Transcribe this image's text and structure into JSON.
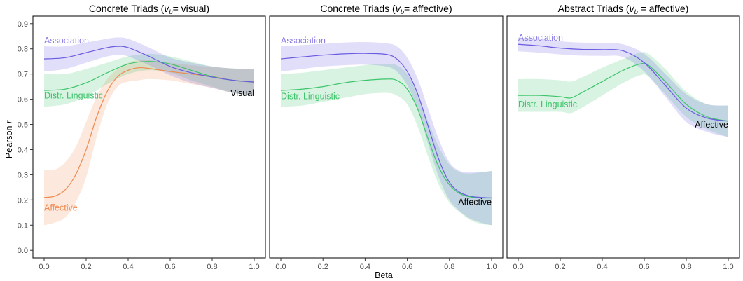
{
  "chart_data": [
    {
      "type": "line",
      "title_pre": "Concrete Triads (",
      "title_var": "v",
      "title_sub": "b",
      "title_post": "= visual)",
      "xlabel": "Beta",
      "ylabel_pre": "Pearson ",
      "ylabel_var": "r",
      "xlim": [
        0,
        1
      ],
      "ylim": [
        -0.03,
        0.93
      ],
      "xticks": [
        "0.0",
        "0.2",
        "0.4",
        "0.6",
        "0.8",
        "1.0"
      ],
      "yticks": [
        "0.0",
        "0.1",
        "0.2",
        "0.3",
        "0.4",
        "0.5",
        "0.6",
        "0.7",
        "0.8",
        "0.9"
      ],
      "series": [
        {
          "name": "Affective",
          "color": "#f08a50",
          "x": [
            0,
            0.05,
            0.1,
            0.15,
            0.2,
            0.25,
            0.3,
            0.35,
            0.4,
            0.45,
            0.5,
            0.6,
            0.7,
            0.8,
            0.9,
            1.0
          ],
          "y": [
            0.21,
            0.215,
            0.24,
            0.3,
            0.4,
            0.53,
            0.63,
            0.69,
            0.715,
            0.725,
            0.722,
            0.71,
            0.7,
            0.69,
            0.675,
            0.668
          ],
          "lo": [
            0.1,
            0.11,
            0.13,
            0.19,
            0.29,
            0.45,
            0.58,
            0.65,
            0.67,
            0.675,
            0.68,
            0.675,
            0.66,
            0.645,
            0.625,
            0.615
          ],
          "hi": [
            0.32,
            0.32,
            0.35,
            0.41,
            0.51,
            0.61,
            0.68,
            0.72,
            0.745,
            0.755,
            0.755,
            0.745,
            0.735,
            0.728,
            0.722,
            0.72
          ]
        },
        {
          "name": "Distr. Linguistic",
          "color": "#3cc46a",
          "x": [
            0,
            0.1,
            0.2,
            0.3,
            0.4,
            0.5,
            0.6,
            0.7,
            0.8,
            0.9,
            1.0
          ],
          "y": [
            0.635,
            0.64,
            0.665,
            0.705,
            0.74,
            0.75,
            0.74,
            0.715,
            0.69,
            0.675,
            0.668
          ],
          "lo": [
            0.57,
            0.58,
            0.61,
            0.66,
            0.7,
            0.715,
            0.705,
            0.675,
            0.65,
            0.625,
            0.615
          ],
          "hi": [
            0.7,
            0.7,
            0.72,
            0.745,
            0.77,
            0.78,
            0.77,
            0.75,
            0.73,
            0.722,
            0.72
          ]
        },
        {
          "name": "Association",
          "color": "#6a5be0",
          "x": [
            0,
            0.1,
            0.2,
            0.3,
            0.35,
            0.4,
            0.5,
            0.6,
            0.7,
            0.8,
            0.9,
            1.0
          ],
          "y": [
            0.76,
            0.765,
            0.785,
            0.805,
            0.81,
            0.805,
            0.77,
            0.73,
            0.705,
            0.688,
            0.675,
            0.668
          ],
          "lo": [
            0.71,
            0.72,
            0.745,
            0.77,
            0.775,
            0.77,
            0.735,
            0.695,
            0.665,
            0.645,
            0.625,
            0.615
          ],
          "hi": [
            0.81,
            0.81,
            0.825,
            0.84,
            0.845,
            0.84,
            0.805,
            0.765,
            0.745,
            0.73,
            0.722,
            0.72
          ]
        }
      ],
      "labels": [
        {
          "text": "Association",
          "color": "#8a7ee6",
          "x": 0.0,
          "y": 0.822,
          "anchor": "start"
        },
        {
          "text": "Distr. Linguistic",
          "color": "#3cc46a",
          "x": 0.0,
          "y": 0.603,
          "anchor": "start"
        },
        {
          "text": "Affective",
          "color": "#f08a50",
          "x": 0.0,
          "y": 0.158,
          "anchor": "start"
        },
        {
          "text": "Visual",
          "color": "#000000",
          "x": 1.0,
          "y": 0.613,
          "anchor": "end"
        }
      ]
    },
    {
      "type": "line",
      "title_pre": "Concrete Triads (",
      "title_var": "v",
      "title_sub": "b",
      "title_post": "= affective)",
      "xlim": [
        0,
        1
      ],
      "ylim": [
        -0.03,
        0.93
      ],
      "xticks": [
        "0.0",
        "0.2",
        "0.4",
        "0.6",
        "0.8",
        "1.0"
      ],
      "series": [
        {
          "name": "Distr. Linguistic",
          "color": "#3cc46a",
          "x": [
            0,
            0.1,
            0.2,
            0.3,
            0.4,
            0.5,
            0.55,
            0.6,
            0.65,
            0.7,
            0.75,
            0.8,
            0.85,
            0.9,
            0.95,
            1.0
          ],
          "y": [
            0.635,
            0.64,
            0.65,
            0.665,
            0.675,
            0.68,
            0.675,
            0.64,
            0.56,
            0.44,
            0.33,
            0.26,
            0.225,
            0.212,
            0.208,
            0.208
          ],
          "lo": [
            0.57,
            0.575,
            0.59,
            0.605,
            0.62,
            0.625,
            0.615,
            0.58,
            0.49,
            0.37,
            0.26,
            0.19,
            0.15,
            0.12,
            0.105,
            0.1
          ],
          "hi": [
            0.7,
            0.705,
            0.715,
            0.725,
            0.735,
            0.74,
            0.735,
            0.7,
            0.62,
            0.51,
            0.41,
            0.34,
            0.31,
            0.305,
            0.31,
            0.315
          ]
        },
        {
          "name": "Association",
          "color": "#6a5be0",
          "x": [
            0,
            0.1,
            0.2,
            0.3,
            0.4,
            0.5,
            0.55,
            0.6,
            0.65,
            0.7,
            0.75,
            0.8,
            0.85,
            0.9,
            0.95,
            1.0
          ],
          "y": [
            0.76,
            0.768,
            0.775,
            0.78,
            0.782,
            0.778,
            0.76,
            0.71,
            0.62,
            0.49,
            0.36,
            0.27,
            0.23,
            0.215,
            0.21,
            0.208
          ],
          "lo": [
            0.71,
            0.72,
            0.73,
            0.735,
            0.737,
            0.73,
            0.71,
            0.655,
            0.56,
            0.42,
            0.29,
            0.2,
            0.155,
            0.125,
            0.11,
            0.1
          ],
          "hi": [
            0.81,
            0.815,
            0.82,
            0.825,
            0.827,
            0.822,
            0.81,
            0.765,
            0.68,
            0.56,
            0.44,
            0.35,
            0.315,
            0.31,
            0.31,
            0.315
          ]
        }
      ],
      "labels": [
        {
          "text": "Association",
          "color": "#8a7ee6",
          "x": 0.0,
          "y": 0.822,
          "anchor": "start"
        },
        {
          "text": "Distr. Linguistic",
          "color": "#3cc46a",
          "x": 0.0,
          "y": 0.6,
          "anchor": "start"
        },
        {
          "text": "Affective",
          "color": "#000000",
          "x": 1.0,
          "y": 0.18,
          "anchor": "end"
        }
      ]
    },
    {
      "type": "line",
      "title_pre": "Abstract Triads (",
      "title_var": "v",
      "title_sub": "b",
      "title_post": " = affective)",
      "xlim": [
        0,
        1
      ],
      "ylim": [
        -0.03,
        0.93
      ],
      "xticks": [
        "0.0",
        "0.2",
        "0.4",
        "0.6",
        "0.8",
        "1.0"
      ],
      "series": [
        {
          "name": "Distr. Linguistic",
          "color": "#3cc46a",
          "x": [
            0,
            0.1,
            0.2,
            0.25,
            0.3,
            0.4,
            0.5,
            0.58,
            0.62,
            0.7,
            0.8,
            0.9,
            1.0
          ],
          "y": [
            0.615,
            0.615,
            0.61,
            0.605,
            0.625,
            0.67,
            0.715,
            0.74,
            0.735,
            0.67,
            0.58,
            0.53,
            0.513
          ],
          "lo": [
            0.55,
            0.55,
            0.55,
            0.545,
            0.565,
            0.615,
            0.665,
            0.695,
            0.69,
            0.62,
            0.53,
            0.48,
            0.45
          ],
          "hi": [
            0.68,
            0.68,
            0.675,
            0.67,
            0.685,
            0.725,
            0.76,
            0.785,
            0.78,
            0.72,
            0.63,
            0.58,
            0.575
          ]
        },
        {
          "name": "Association",
          "color": "#6a5be0",
          "x": [
            0,
            0.1,
            0.2,
            0.3,
            0.4,
            0.5,
            0.6,
            0.7,
            0.8,
            0.9,
            1.0
          ],
          "y": [
            0.818,
            0.812,
            0.803,
            0.798,
            0.797,
            0.792,
            0.745,
            0.655,
            0.565,
            0.525,
            0.513
          ],
          "lo": [
            0.79,
            0.785,
            0.778,
            0.773,
            0.772,
            0.767,
            0.71,
            0.61,
            0.51,
            0.47,
            0.45
          ],
          "hi": [
            0.845,
            0.84,
            0.83,
            0.825,
            0.823,
            0.818,
            0.78,
            0.7,
            0.62,
            0.58,
            0.575
          ]
        }
      ],
      "labels": [
        {
          "text": "Association",
          "color": "#8a7ee6",
          "x": 0.0,
          "y": 0.832,
          "anchor": "start"
        },
        {
          "text": "Distr. Linguistic",
          "color": "#3cc46a",
          "x": 0.0,
          "y": 0.568,
          "anchor": "start"
        },
        {
          "text": "Affective",
          "color": "#000000",
          "x": 1.0,
          "y": 0.487,
          "anchor": "end"
        }
      ]
    }
  ]
}
